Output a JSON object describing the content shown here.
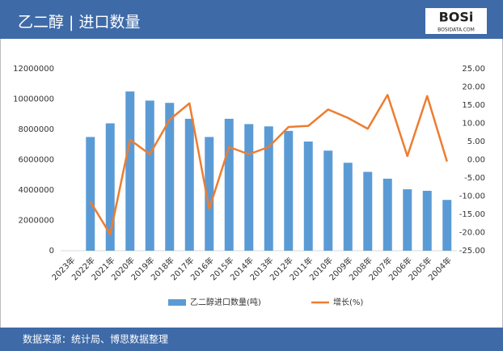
{
  "chart_data": {
    "type": "bar-line",
    "title": "乙二醇 | 进口数量",
    "source": "数据来源：统计局、博思数据整理",
    "categories": [
      "2023年",
      "2022年",
      "2021年",
      "2020年",
      "2019年",
      "2018年",
      "2017年",
      "2016年",
      "2015年",
      "2014年",
      "2013年",
      "2012年",
      "2011年",
      "2010年",
      "2009年",
      "2008年",
      "2007年",
      "2006年",
      "2005年",
      "2004年"
    ],
    "series": [
      {
        "name": "乙二醇进口数量(吨)",
        "color": "#5b9bd5",
        "type": "bar",
        "values": [
          null,
          7500000,
          8400000,
          10500000,
          9900000,
          9750000,
          8700000,
          7500000,
          8700000,
          8350000,
          8200000,
          7900000,
          7200000,
          6600000,
          5800000,
          5200000,
          4750000,
          4050000,
          3950000,
          3350000
        ]
      },
      {
        "name": "增长(%)",
        "color": "#ed7d31",
        "type": "line",
        "axis": "y2",
        "values": [
          null,
          -11.5,
          -20.5,
          5.5,
          1.5,
          11,
          15.5,
          -13.5,
          3.5,
          1.5,
          3.5,
          9,
          9.3,
          13.8,
          11.5,
          8.5,
          17.8,
          1,
          17.5,
          -0.5
        ]
      }
    ],
    "ylim": [
      0,
      12000000
    ],
    "yticks": [
      0,
      2000000,
      4000000,
      6000000,
      8000000,
      10000000,
      12000000
    ],
    "y2lim": [
      -25,
      25
    ],
    "y2ticks": [
      {
        "value": 25,
        "label": "25.00"
      },
      {
        "value": 20,
        "label": "20.00"
      },
      {
        "value": 15,
        "label": "15.00"
      },
      {
        "value": 10,
        "label": "10.00"
      },
      {
        "value": 5,
        "label": "5.00"
      },
      {
        "value": 0,
        "label": "0.00"
      },
      {
        "value": -5,
        "label": "-5.00"
      },
      {
        "value": -10,
        "label": "-10.00"
      },
      {
        "value": -15,
        "label": "-15.00"
      },
      {
        "value": -20,
        "label": "-20.00"
      },
      {
        "value": -25,
        "label": "-25.00"
      }
    ],
    "legend": "bottom"
  },
  "logo": {
    "text": "BOSi",
    "subtext": "BOSIDATA.COM"
  }
}
